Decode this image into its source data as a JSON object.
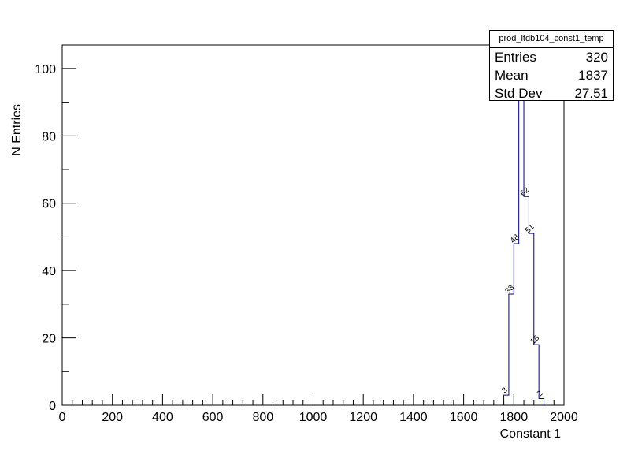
{
  "chart_data": {
    "type": "histogram",
    "xlabel": "Constant 1",
    "ylabel": "N Entries",
    "xlim": [
      0,
      2000
    ],
    "ylim": [
      0,
      107
    ],
    "xticks": [
      0,
      200,
      400,
      600,
      800,
      1000,
      1200,
      1400,
      1600,
      1800,
      2000
    ],
    "yticks": [
      0,
      20,
      40,
      60,
      80,
      100
    ],
    "bin_width": 20,
    "bins": [
      {
        "low": 1760,
        "high": 1780,
        "count": 3
      },
      {
        "low": 1780,
        "high": 1800,
        "count": 33
      },
      {
        "low": 1800,
        "high": 1820,
        "count": 48
      },
      {
        "low": 1820,
        "high": 1840,
        "count": 103
      },
      {
        "low": 1840,
        "high": 1860,
        "count": 62
      },
      {
        "low": 1860,
        "high": 1880,
        "count": 51
      },
      {
        "low": 1880,
        "high": 1900,
        "count": 18
      },
      {
        "low": 1900,
        "high": 1920,
        "count": 2
      }
    ],
    "line_color": "#000080",
    "grid": false,
    "legend": "none"
  },
  "stats": {
    "title": "prod_ltdb104_const1_temp",
    "entries_label": "Entries",
    "entries_value": "320",
    "mean_label": "Mean",
    "mean_value": "1837",
    "stddev_label": "Std Dev",
    "stddev_value": "27.51"
  }
}
